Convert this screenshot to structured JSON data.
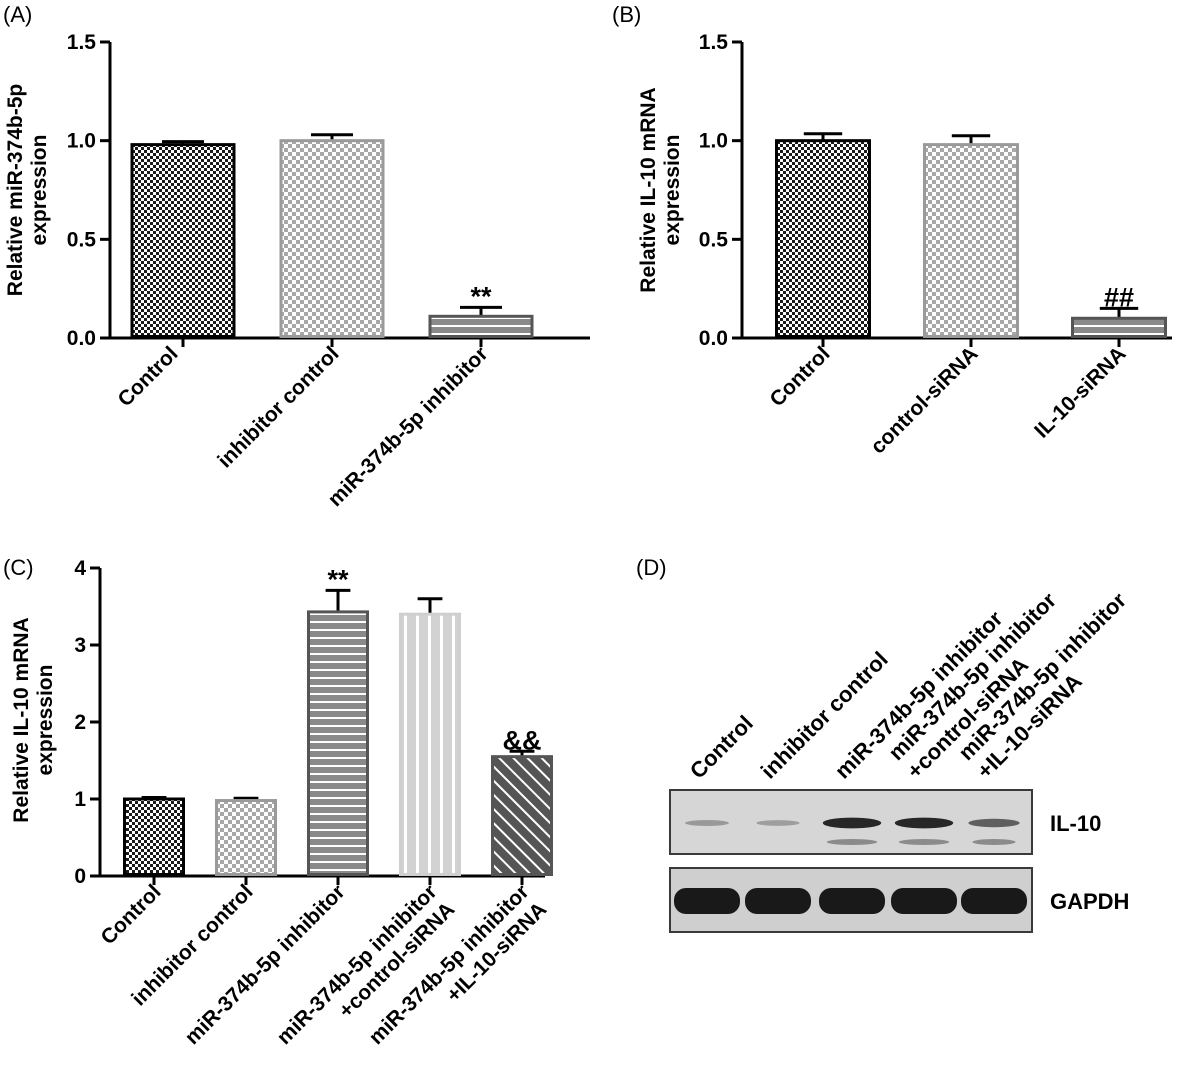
{
  "chart_data": [
    {
      "panel": "(A)",
      "type": "bar",
      "ylabel": [
        "Relative miR-374b-5p",
        "expression"
      ],
      "ylim": [
        0,
        1.5
      ],
      "yticks": [
        "0.0",
        "0.5",
        "1.0",
        "1.5"
      ],
      "categories": [
        "Control",
        "inhibitor control",
        "miR-374b-5p inhibitor"
      ],
      "values": [
        0.98,
        1.0,
        0.11
      ],
      "errors": [
        0.015,
        0.03,
        0.045
      ],
      "annotations": [
        "",
        "",
        "**"
      ],
      "patterns": [
        "checker-dark",
        "checker-light",
        "hstripe-gray"
      ]
    },
    {
      "panel": "(B)",
      "type": "bar",
      "ylabel": [
        "Relative IL-10 mRNA",
        "expression"
      ],
      "ylim": [
        0,
        1.5
      ],
      "yticks": [
        "0.0",
        "0.5",
        "1.0",
        "1.5"
      ],
      "categories": [
        "Control",
        "control-siRNA",
        "IL-10-siRNA"
      ],
      "values": [
        1.0,
        0.98,
        0.1
      ],
      "errors": [
        0.035,
        0.045,
        0.05
      ],
      "annotations": [
        "",
        "",
        "##"
      ],
      "patterns": [
        "checker-dark",
        "checker-light",
        "hstripe-gray"
      ]
    },
    {
      "panel": "(C)",
      "type": "bar",
      "ylabel": [
        "Relative IL-10 mRNA",
        "expression"
      ],
      "ylim": [
        0,
        4
      ],
      "yticks": [
        "0",
        "1",
        "2",
        "3",
        "4"
      ],
      "categories": [
        [
          "Control"
        ],
        [
          "inhibitor control"
        ],
        [
          "miR-374b-5p inhibitor"
        ],
        [
          "miR-374b-5p inhibitor",
          "+control-siRNA"
        ],
        [
          "miR-374b-5p inhibitor",
          "+IL-10-siRNA"
        ]
      ],
      "values": [
        1.0,
        0.98,
        3.43,
        3.4,
        1.55
      ],
      "errors": [
        0.02,
        0.03,
        0.28,
        0.2,
        0.07
      ],
      "annotations": [
        "",
        "",
        "**",
        "",
        "&&"
      ],
      "patterns": [
        "checker-dark",
        "checker-light",
        "hstripe-gray",
        "vstripe-light",
        "diag-dark"
      ]
    }
  ],
  "blot": {
    "panel": "(D)",
    "lanes": [
      [
        "Control"
      ],
      [
        "inhibitor control"
      ],
      [
        "miR-374b-5p inhibitor"
      ],
      [
        "miR-374b-5p inhibitor",
        "+control-siRNA"
      ],
      [
        "miR-374b-5p inhibitor",
        "+IL-10-siRNA"
      ]
    ],
    "bands": [
      {
        "label": "IL-10",
        "intensity": [
          0.25,
          0.22,
          0.85,
          0.85,
          0.55
        ]
      },
      {
        "label": "GAPDH",
        "intensity": [
          1,
          1,
          1,
          1,
          1
        ]
      }
    ]
  }
}
